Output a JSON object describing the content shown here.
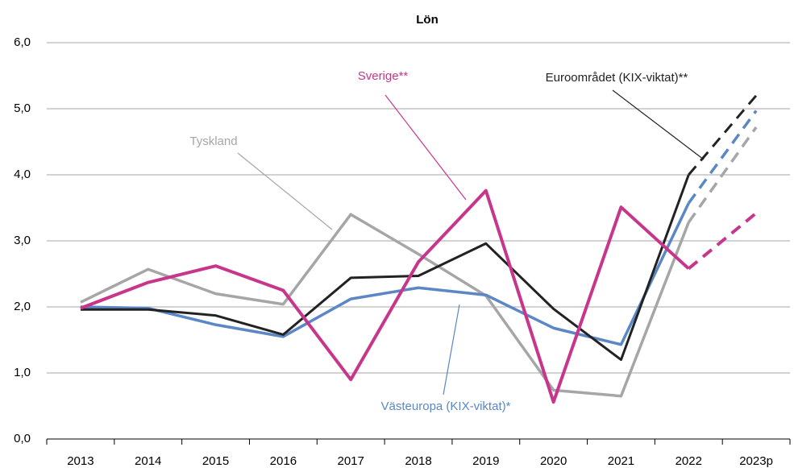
{
  "chart_data": {
    "type": "line",
    "title": "Lön",
    "categories": [
      "2013",
      "2014",
      "2015",
      "2016",
      "2017",
      "2018",
      "2019",
      "2020",
      "2021",
      "2022",
      "2023p"
    ],
    "series": [
      {
        "name": "Tyskland",
        "color": "#a6a6a6",
        "values": [
          2.07,
          2.57,
          2.2,
          2.04,
          3.4,
          2.8,
          2.17,
          0.74,
          0.65,
          3.28,
          4.72
        ]
      },
      {
        "name": "Västeuropa (KIX-viktat)*",
        "color": "#5b87c5",
        "values": [
          2.0,
          1.98,
          1.73,
          1.55,
          2.12,
          2.29,
          2.18,
          1.68,
          1.43,
          3.57,
          4.97
        ]
      },
      {
        "name": "Euroområdet (KIX-viktat)**",
        "color": "#222222",
        "values": [
          1.96,
          1.96,
          1.87,
          1.58,
          2.44,
          2.47,
          2.96,
          1.97,
          1.2,
          4.0,
          5.2
        ]
      },
      {
        "name": "Sverige**",
        "color": "#c8368c",
        "values": [
          1.98,
          2.37,
          2.62,
          2.25,
          0.9,
          2.68,
          3.76,
          0.56,
          3.51,
          2.58,
          3.42
        ]
      }
    ],
    "ylim": [
      0,
      6
    ],
    "yticks": [
      {
        "value": 0,
        "label": "0,0"
      },
      {
        "value": 1,
        "label": "1,0"
      },
      {
        "value": 2,
        "label": "2,0"
      },
      {
        "value": 3,
        "label": "3,0"
      },
      {
        "value": 4,
        "label": "4,0"
      },
      {
        "value": 5,
        "label": "5,0"
      },
      {
        "value": 6,
        "label": "6,0"
      }
    ],
    "grid": true,
    "dashed_last_segment": true
  }
}
